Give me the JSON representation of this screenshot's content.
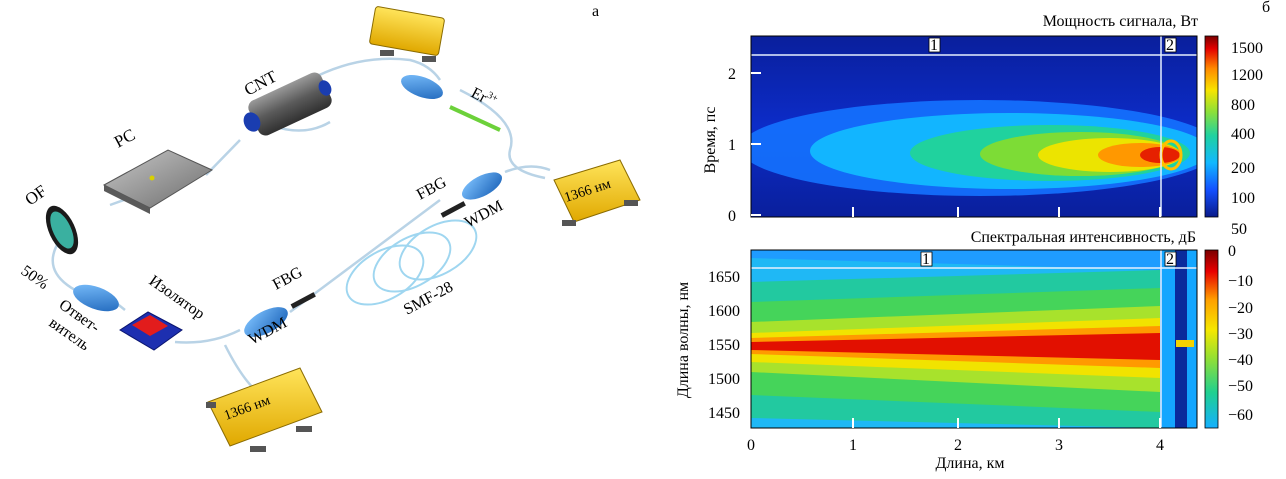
{
  "panel_a": {
    "letter": "а",
    "labels": {
      "cnt": "CNT",
      "pc": "PC",
      "of": "OF",
      "er": "Er",
      "er_sup": "3+",
      "fbg_top": "FBG",
      "wdm_top": "WDM",
      "fbg_bottom": "FBG",
      "wdm_bottom": "WDM",
      "smf": "SMF-28",
      "isolator": "Изолятор",
      "percent": "50%",
      "coupler_line1": "Ответ-",
      "coupler_line2": "витель",
      "pump_right": "1366 нм",
      "pump_bottom": "1366 нм"
    }
  },
  "panel_b": {
    "letter": "б",
    "top": {
      "title": "Мощность сигнала, Вт",
      "ylabel": "Время, пс",
      "yticks": [
        "0",
        "1",
        "2"
      ],
      "colorbar_ticks": [
        "1500",
        "1200",
        "800",
        "400",
        "200",
        "100",
        "50"
      ],
      "markers": [
        "1",
        "2"
      ]
    },
    "bottom": {
      "title": "Спектральная интенсивность, дБ",
      "ylabel": "Длина волны, нм",
      "yticks": [
        "1450",
        "1500",
        "1550",
        "1600",
        "1650"
      ],
      "colorbar_ticks": [
        "0",
        "−10",
        "−20",
        "−30",
        "−40",
        "−50",
        "−60"
      ],
      "markers": [
        "1",
        "2"
      ],
      "xlabel": "Длина, км",
      "xticks": [
        "0",
        "1",
        "2",
        "3",
        "4"
      ]
    }
  }
}
